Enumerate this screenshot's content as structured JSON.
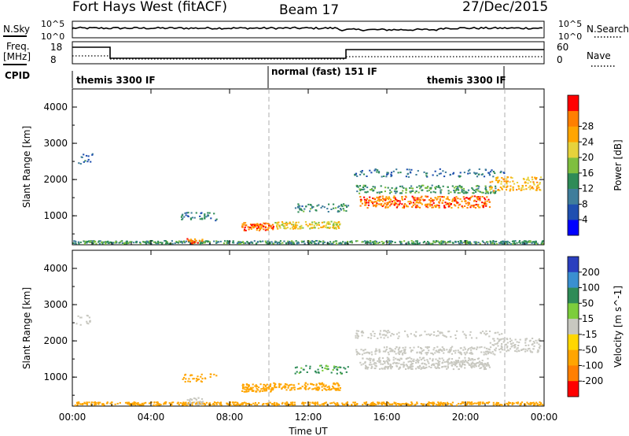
{
  "header": {
    "station": "Fort Hays West (fitACF)",
    "beam": "Beam 17",
    "date": "27/Dec/2015"
  },
  "noise_panel": {
    "left_label": "N.Sky",
    "right_label": "N.Search",
    "left_ticks": [
      "10^5",
      "10^0"
    ],
    "right_ticks": [
      "10^5",
      "10^0"
    ]
  },
  "freq_panel": {
    "left_label": "Freq.",
    "left_unit": "[MHz]",
    "right_label": "Nave",
    "left_ticks": [
      "18",
      "8"
    ],
    "right_ticks": [
      "60",
      "0"
    ]
  },
  "cpid": {
    "label": "CPID",
    "segments": [
      {
        "start": 0.0,
        "end": 10.0,
        "text": "themis 3300 IF"
      },
      {
        "start": 10.0,
        "end": 22.0,
        "text": "normal (fast) 151 IF"
      },
      {
        "start": 18.0,
        "end": 22.0,
        "text": "themis 3300 IF"
      }
    ]
  },
  "chart_data": [
    {
      "type": "heatmap",
      "title": "",
      "xlabel": "",
      "ylabel": "Slant Range [km]",
      "xlim": [
        0,
        24
      ],
      "ylim": [
        200,
        4500
      ],
      "x_ticks": [
        "00:00",
        "04:00",
        "08:00",
        "12:00",
        "16:00",
        "20:00",
        "00:00"
      ],
      "y_ticks": [
        1000,
        2000,
        3000,
        4000
      ],
      "colorbar": {
        "label": "Power [dB]",
        "ticks": [
          4,
          8,
          12,
          16,
          20,
          24,
          28
        ],
        "range": [
          0,
          32
        ],
        "colors": [
          "#0000ff",
          "#1f4fb0",
          "#3f7d9b",
          "#2e8b57",
          "#7fbf3f",
          "#e6d23c",
          "#ffa500",
          "#ff7f00",
          "#ff0000"
        ]
      },
      "features": [
        {
          "t_start": 0.0,
          "t_end": 24.0,
          "r_center": 270,
          "r_width": 120,
          "value": 12,
          "density": 0.55
        },
        {
          "t_start": 5.8,
          "t_end": 6.6,
          "r_center": 300,
          "r_width": 180,
          "value": 26,
          "density": 0.6
        },
        {
          "t_start": 5.5,
          "t_end": 7.3,
          "r_center": 1000,
          "r_width": 220,
          "value": 9,
          "density": 0.35
        },
        {
          "t_start": 8.6,
          "t_end": 10.2,
          "r_center": 720,
          "r_width": 220,
          "value": 27,
          "density": 0.85
        },
        {
          "t_start": 10.2,
          "t_end": 13.6,
          "r_center": 760,
          "r_width": 200,
          "value": 20,
          "density": 0.65
        },
        {
          "t_start": 11.3,
          "t_end": 14.0,
          "r_center": 1230,
          "r_width": 230,
          "value": 11,
          "density": 0.35
        },
        {
          "t_start": 14.6,
          "t_end": 21.2,
          "r_center": 1400,
          "r_width": 320,
          "value": 27,
          "density": 0.85
        },
        {
          "t_start": 14.4,
          "t_end": 21.5,
          "r_center": 1750,
          "r_width": 220,
          "value": 13,
          "density": 0.45
        },
        {
          "t_start": 21.2,
          "t_end": 23.8,
          "r_center": 1900,
          "r_width": 380,
          "value": 22,
          "density": 0.7
        },
        {
          "t_start": 14.3,
          "t_end": 22.0,
          "r_center": 2200,
          "r_width": 220,
          "value": 8,
          "density": 0.22
        },
        {
          "t_start": 0.1,
          "t_end": 1.0,
          "r_center": 2600,
          "r_width": 300,
          "value": 7,
          "density": 0.25
        }
      ]
    },
    {
      "type": "heatmap",
      "title": "",
      "xlabel": "Time UT",
      "ylabel": "Slant Range [km]",
      "xlim": [
        0,
        24
      ],
      "ylim": [
        200,
        4500
      ],
      "x_ticks": [
        "00:00",
        "04:00",
        "08:00",
        "12:00",
        "16:00",
        "20:00",
        "00:00"
      ],
      "y_ticks": [
        1000,
        2000,
        3000,
        4000
      ],
      "colorbar": {
        "label": "Velocity [m s^-1]",
        "ticks": [
          200,
          100,
          50,
          15,
          -15,
          -50,
          -100,
          -200
        ],
        "colors": [
          "#2a3fbf",
          "#3a8fd0",
          "#2e8b57",
          "#7ccd3c",
          "#c8c8c0",
          "#ffd700",
          "#ffa500",
          "#ff7f00",
          "#ff0000"
        ]
      },
      "features": [
        {
          "t_start": 0.0,
          "t_end": 24.0,
          "r_center": 270,
          "r_width": 120,
          "value": -50,
          "density": 0.55
        },
        {
          "t_start": 5.8,
          "t_end": 6.6,
          "r_center": 350,
          "r_width": 200,
          "value": 0,
          "density": 0.6
        },
        {
          "t_start": 5.5,
          "t_end": 7.3,
          "r_center": 1000,
          "r_width": 220,
          "value": -60,
          "density": 0.3
        },
        {
          "t_start": 8.6,
          "t_end": 10.2,
          "r_center": 720,
          "r_width": 220,
          "value": -50,
          "density": 0.85
        },
        {
          "t_start": 10.2,
          "t_end": 13.6,
          "r_center": 760,
          "r_width": 200,
          "value": -50,
          "density": 0.6
        },
        {
          "t_start": 11.3,
          "t_end": 14.0,
          "r_center": 1230,
          "r_width": 230,
          "value": 40,
          "density": 0.3
        },
        {
          "t_start": 14.6,
          "t_end": 21.2,
          "r_center": 1400,
          "r_width": 320,
          "value": 0,
          "density": 0.85
        },
        {
          "t_start": 14.4,
          "t_end": 21.5,
          "r_center": 1750,
          "r_width": 220,
          "value": 0,
          "density": 0.45
        },
        {
          "t_start": 21.2,
          "t_end": 23.8,
          "r_center": 1900,
          "r_width": 380,
          "value": 0,
          "density": 0.7
        },
        {
          "t_start": 14.3,
          "t_end": 22.0,
          "r_center": 2200,
          "r_width": 220,
          "value": 0,
          "density": 0.22
        },
        {
          "t_start": 0.1,
          "t_end": 1.0,
          "r_center": 2600,
          "r_width": 300,
          "value": 0,
          "density": 0.25
        }
      ]
    }
  ]
}
